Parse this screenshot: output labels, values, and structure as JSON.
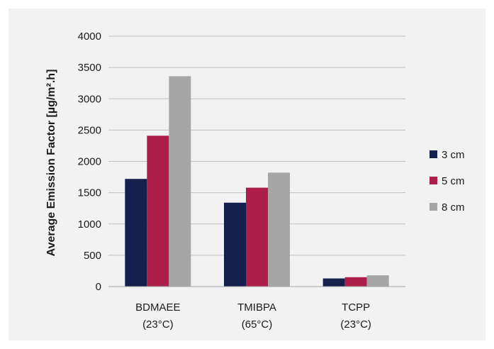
{
  "chart_data": {
    "type": "bar",
    "categories": [
      [
        "BDMAEE",
        "(23°C)"
      ],
      [
        "TMIBPA",
        "(65°C)"
      ],
      [
        "TCPP",
        "(23°C)"
      ]
    ],
    "series": [
      {
        "name": "3 cm",
        "values": [
          1720,
          1340,
          130
        ],
        "color": "#16204f"
      },
      {
        "name": "5 cm",
        "values": [
          2410,
          1580,
          150
        ],
        "color": "#ad1f4a"
      },
      {
        "name": "8 cm",
        "values": [
          3360,
          1820,
          180
        ],
        "color": "#a6a6a6"
      }
    ],
    "title": "",
    "xlabel": "",
    "ylabel": "Average Emission Factor [µg/m².h]",
    "ylim": [
      0,
      4000
    ],
    "yticks": [
      0,
      500,
      1000,
      1500,
      2000,
      2500,
      3000,
      3500,
      4000
    ],
    "grid": true,
    "legend_position": "right"
  }
}
